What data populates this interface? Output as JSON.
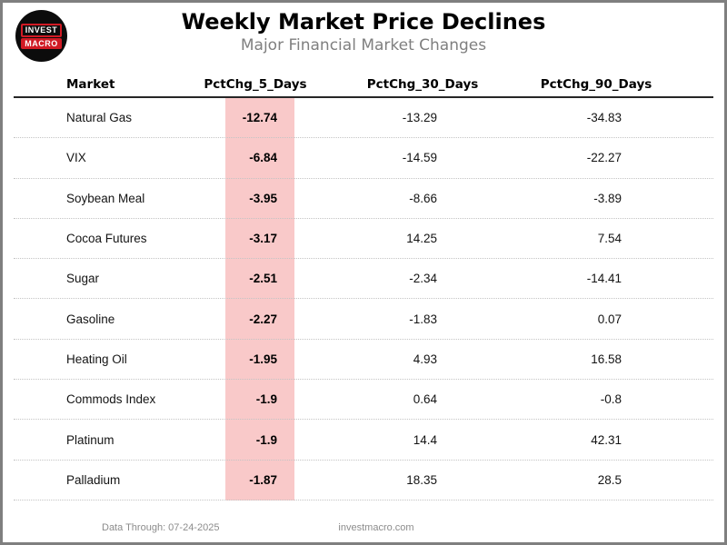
{
  "logo": {
    "line1": "INVEST",
    "line2": "MACRO"
  },
  "chart_data": {
    "type": "table",
    "title": "Weekly Market Price Declines",
    "subtitle": "Major Financial Market Changes",
    "columns": [
      "Market",
      "PctChg_5_Days",
      "PctChg_30_Days",
      "PctChg_90_Days"
    ],
    "rows": [
      [
        "Natural Gas",
        -12.74,
        -13.29,
        -34.83
      ],
      [
        "VIX",
        -6.84,
        -14.59,
        -22.27
      ],
      [
        "Soybean Meal",
        -3.95,
        -8.66,
        -3.89
      ],
      [
        "Cocoa Futures",
        -3.17,
        14.25,
        7.54
      ],
      [
        "Sugar",
        -2.51,
        -2.34,
        -14.41
      ],
      [
        "Gasoline",
        -2.27,
        -1.83,
        0.07
      ],
      [
        "Heating Oil",
        -1.95,
        4.93,
        16.58
      ],
      [
        "Commods Index",
        -1.9,
        0.64,
        -0.8
      ],
      [
        "Platinum",
        -1.9,
        14.4,
        42.31
      ],
      [
        "Palladium",
        -1.87,
        18.35,
        28.5
      ]
    ],
    "highlighted_column": "PctChg_5_Days",
    "layout": {
      "column_alignment": [
        "left",
        "right",
        "right",
        "right"
      ],
      "row_separator": "dotted",
      "legend": "none",
      "grid": "horizontal-dotted"
    }
  },
  "footer": {
    "data_through": "Data Through: 07-24-2025",
    "website": "investmacro.com"
  },
  "colors": {
    "highlight_pink": "#f9c9c9",
    "logo_red": "#d11a24",
    "logo_black": "#0c0c0c",
    "frame_gray": "#7f7f7f",
    "subtitle_gray": "#7f7f7f",
    "footer_gray": "#8c8c8c",
    "header_rule": "#262626"
  }
}
